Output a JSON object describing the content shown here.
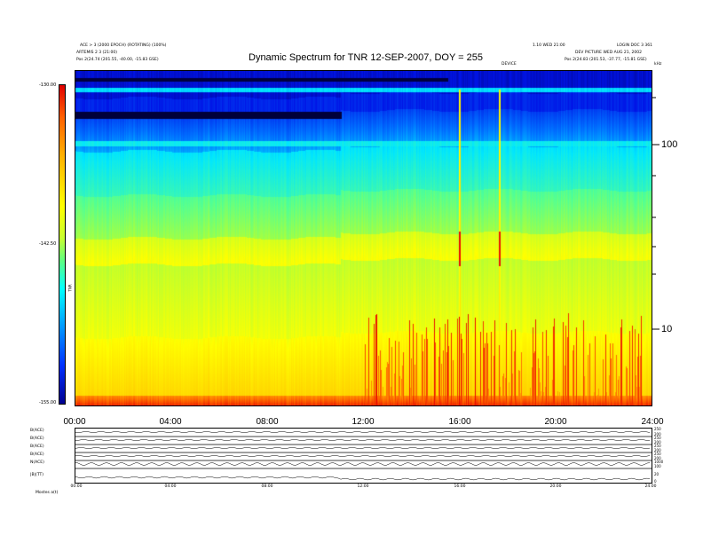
{
  "header": {
    "left_line1": "ACE > 3 (2000 EPOCH) (ROTATING) (100%)",
    "left_line2": "ARTEMIS 2 3 (21:00)",
    "left_pos": "Pos  2(24.74 (201.55, -40.00, -15.83 GSE)",
    "center_small": "DEVICE",
    "right_line1": "1.10 WED 21:00",
    "right_line1b": "LOGIN DOC 3 361",
    "right_line2": "DEV PICTURE WED AUG 21, 2002",
    "right_pos": "Pos  2(24.83 (201.53, -37.77, -15.81 GSE)",
    "right_unit": "kHz"
  },
  "chart_data": {
    "type": "heatmap",
    "title": "Dynamic Spectrum for TNR 12-SEP-2007, DOY = 255",
    "x_ticks": [
      "00:00",
      "04:00",
      "08:00",
      "12:00",
      "16:00",
      "20:00",
      "24:00"
    ],
    "xlim_hours": [
      0,
      24
    ],
    "y_scale": "log",
    "y_ticks": [
      "100",
      "10"
    ],
    "ylim_khz": [
      4,
      250
    ],
    "colorbar": {
      "ticks": [
        "-130.00",
        "-142.50",
        "-155.00"
      ],
      "range": [
        -155.0,
        -130.0
      ],
      "label": "TNR",
      "colors": [
        "#000090",
        "#0030ff",
        "#00a0ff",
        "#00ffff",
        "#60ff80",
        "#c8ff30",
        "#ffff00",
        "#ffb000",
        "#ff6000",
        "#e00000"
      ]
    },
    "features": {
      "type_iii_burst_hours": [
        15.95,
        17.6
      ],
      "emission_onset_hour": 11.0
    }
  },
  "bottom_panels": {
    "labels": [
      "B(ACE)",
      "B(ACE)",
      "B(ACE)",
      "B(ACE)",
      "N(ACE)",
      "|B|(TT)"
    ],
    "right_labels": [
      "250",
      "200",
      "250",
      "200",
      "250",
      "200",
      "250",
      "200",
      "1000",
      "100",
      "20",
      "0"
    ],
    "x_ticks": [
      "00:00",
      "04:00",
      "08:00",
      "12:00",
      "16:00",
      "20:00",
      "24:00"
    ],
    "footer_label": "Mostes  a(t)"
  }
}
